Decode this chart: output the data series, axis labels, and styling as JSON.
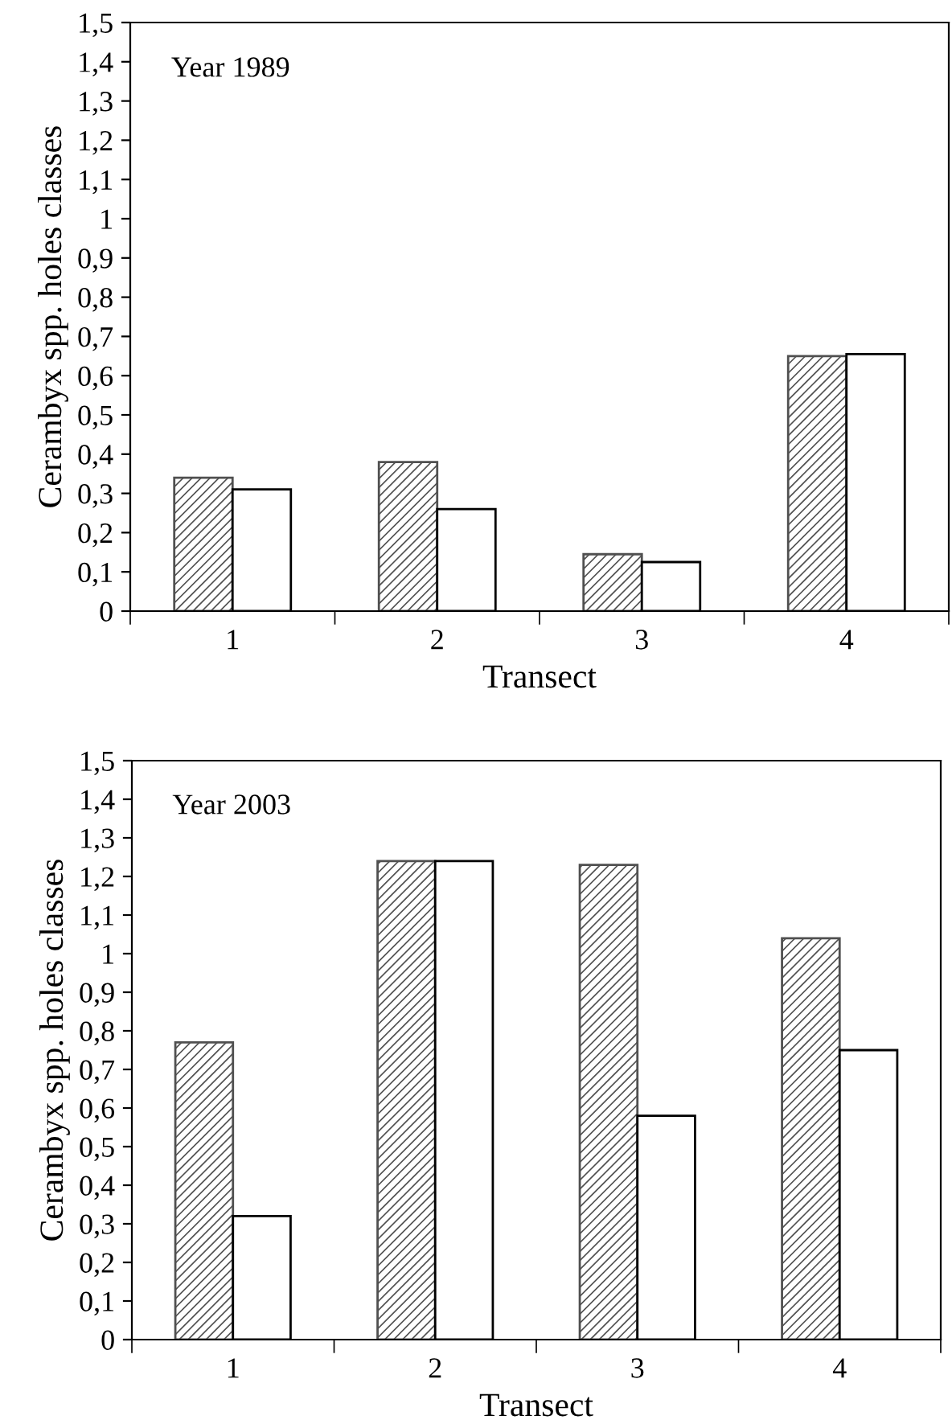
{
  "chart_data": [
    {
      "type": "bar",
      "xlabel": "Transect",
      "ylabel": "Cerambyx spp. holes classes",
      "annotations": [
        "Year 1989"
      ],
      "categories": [
        "1",
        "2",
        "3",
        "4"
      ],
      "series": [
        {
          "color": "#505050",
          "values": [
            0.34,
            0.38,
            0.145,
            0.65
          ]
        },
        {
          "color": "#ffffff",
          "values": [
            0.31,
            0.26,
            0.125,
            0.655
          ]
        }
      ],
      "ylim": [
        0,
        1.5
      ],
      "yticks": [
        0,
        {
          "value": 0.1,
          "label": "0,1"
        },
        {
          "value": 0.2,
          "label": "0,2"
        },
        {
          "value": 0.3,
          "label": "0,3"
        },
        {
          "value": 0.4,
          "label": "0,4"
        },
        {
          "value": 0.5,
          "label": "0,5"
        },
        {
          "value": 0.6,
          "label": "0,6"
        },
        {
          "value": 0.7,
          "label": "0,7"
        },
        {
          "value": 0.8,
          "label": "0,8"
        },
        {
          "value": 0.9,
          "label": "0,9"
        },
        1,
        {
          "value": 1.1,
          "label": "1,1"
        },
        {
          "value": 1.2,
          "label": "1,2"
        },
        {
          "value": 1.3,
          "label": "1,3"
        },
        {
          "value": 1.4,
          "label": "1,4"
        },
        {
          "value": 1.5,
          "label": "1,5"
        }
      ],
      "grid": false,
      "legend": false
    },
    {
      "type": "bar",
      "xlabel": "Transect",
      "ylabel": "Cerambyx spp. holes classes",
      "annotations": [
        "Year 2003"
      ],
      "categories": [
        "1",
        "2",
        "3",
        "4"
      ],
      "series": [
        {
          "color": "#505050",
          "values": [
            0.77,
            1.24,
            1.23,
            1.04
          ]
        },
        {
          "color": "#ffffff",
          "values": [
            0.32,
            1.24,
            0.58,
            0.75
          ]
        }
      ],
      "ylim": [
        0,
        1.5
      ],
      "yticks": [
        0,
        {
          "value": 0.1,
          "label": "0,1"
        },
        {
          "value": 0.2,
          "label": "0,2"
        },
        {
          "value": 0.3,
          "label": "0,3"
        },
        {
          "value": 0.4,
          "label": "0,4"
        },
        {
          "value": 0.5,
          "label": "0,5"
        },
        {
          "value": 0.6,
          "label": "0,6"
        },
        {
          "value": 0.7,
          "label": "0,7"
        },
        {
          "value": 0.8,
          "label": "0,8"
        },
        {
          "value": 0.9,
          "label": "0,9"
        },
        1,
        {
          "value": 1.1,
          "label": "1,1"
        },
        {
          "value": 1.2,
          "label": "1,2"
        },
        {
          "value": 1.3,
          "label": "1,3"
        },
        {
          "value": 1.4,
          "label": "1,4"
        },
        {
          "value": 1.5,
          "label": "1,5"
        }
      ],
      "grid": false,
      "legend": false
    }
  ]
}
